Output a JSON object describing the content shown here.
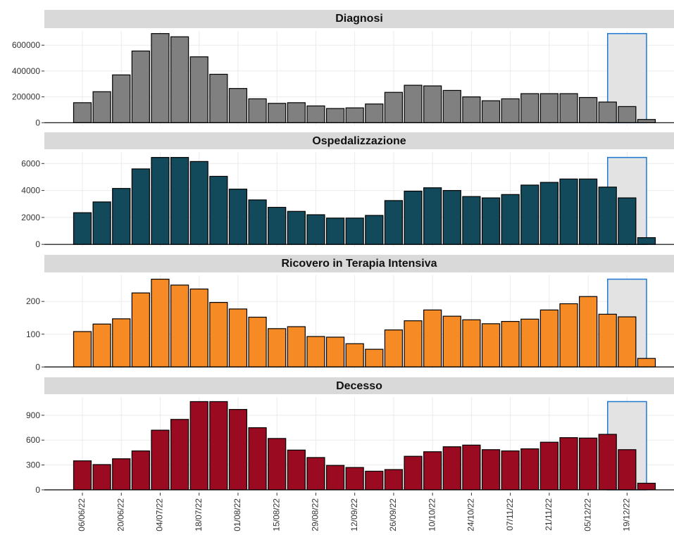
{
  "chart_data": [
    {
      "type": "bar",
      "title": "Diagnosi",
      "color": "#808080",
      "values": [
        155000,
        240000,
        370000,
        555000,
        690000,
        665000,
        510000,
        375000,
        265000,
        185000,
        150000,
        155000,
        130000,
        110000,
        115000,
        145000,
        235000,
        290000,
        285000,
        250000,
        200000,
        170000,
        185000,
        225000,
        225000,
        225000,
        195000,
        160000,
        125000,
        25000
      ],
      "ylim": [
        -20000,
        710000
      ],
      "yticks": [
        0,
        200000,
        400000,
        600000
      ],
      "grid": true,
      "highlight": {
        "from": 27,
        "to": 29,
        "color": "#1f78d1"
      }
    },
    {
      "type": "bar",
      "title": "Ospedalizzazione",
      "color": "#124a5c",
      "values": [
        2350,
        3150,
        4150,
        5600,
        6450,
        6450,
        6150,
        5050,
        4100,
        3300,
        2750,
        2450,
        2200,
        1950,
        1950,
        2150,
        3250,
        3950,
        4200,
        4000,
        3550,
        3450,
        3700,
        4400,
        4600,
        4850,
        4850,
        4250,
        3450,
        500
      ],
      "ylim": [
        -200,
        6850
      ],
      "yticks": [
        0,
        2000,
        4000,
        6000
      ],
      "grid": true,
      "highlight": {
        "from": 27,
        "to": 29,
        "color": "#1f78d1"
      }
    },
    {
      "type": "bar",
      "title": "Ricovero in Terapia Intensiva",
      "color": "#f68b25",
      "values": [
        108,
        131,
        147,
        226,
        268,
        250,
        238,
        197,
        177,
        152,
        117,
        123,
        93,
        91,
        71,
        54,
        113,
        141,
        174,
        155,
        144,
        132,
        139,
        146,
        174,
        193,
        215,
        161,
        153,
        26
      ],
      "ylim": [
        -8,
        280
      ],
      "yticks": [
        0,
        100,
        200
      ],
      "grid": true,
      "highlight": {
        "from": 27,
        "to": 29,
        "color": "#1f78d1"
      }
    },
    {
      "type": "bar",
      "title": "Decesso",
      "color": "#9a0a20",
      "categories": [
        "06/06/22",
        null,
        "20/06/22",
        null,
        "04/07/22",
        null,
        "18/07/22",
        null,
        "01/08/22",
        null,
        "15/08/22",
        null,
        "29/08/22",
        null,
        "12/09/22",
        null,
        "26/09/22",
        null,
        "10/10/22",
        null,
        "24/10/22",
        null,
        "07/11/22",
        null,
        "21/11/22",
        null,
        "05/12/22",
        null,
        "19/12/22",
        null
      ],
      "values": [
        350,
        305,
        375,
        470,
        720,
        850,
        1065,
        1065,
        970,
        750,
        620,
        480,
        390,
        295,
        270,
        225,
        245,
        405,
        460,
        520,
        540,
        485,
        470,
        495,
        575,
        630,
        625,
        670,
        485,
        80
      ],
      "ylim": [
        -35,
        1120
      ],
      "yticks": [
        0,
        300,
        600,
        900
      ],
      "grid": true,
      "highlight": {
        "from": 27,
        "to": 29,
        "color": "#1f78d1"
      }
    }
  ]
}
